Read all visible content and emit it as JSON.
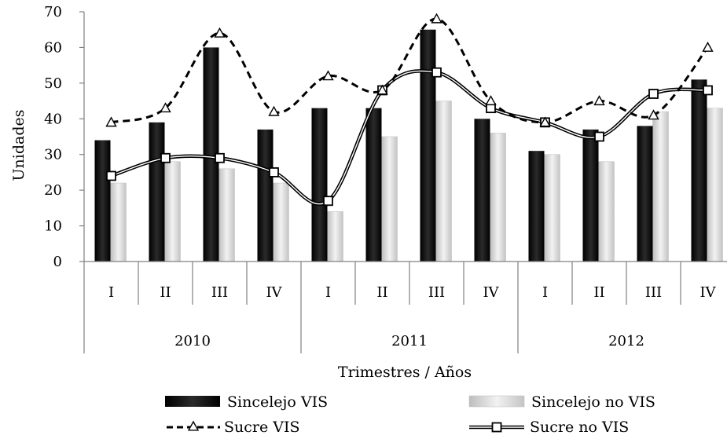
{
  "chart_data": {
    "type": "bar",
    "xlabel": "Trimestres / Años",
    "ylabel": "Unidades",
    "ylim": [
      0,
      70
    ],
    "yticks": [
      0,
      10,
      20,
      30,
      40,
      50,
      60,
      70
    ],
    "grid": false,
    "legend_position": "bottom",
    "quarters": [
      "I",
      "II",
      "III",
      "IV",
      "I",
      "II",
      "III",
      "IV",
      "I",
      "II",
      "III",
      "IV"
    ],
    "years": [
      "2010",
      "2011",
      "2012"
    ],
    "series": [
      {
        "name": "Sincelejo VIS",
        "kind": "bar",
        "color": "#000000",
        "values": [
          34,
          39,
          60,
          37,
          43,
          43,
          65,
          40,
          31,
          37,
          38,
          51
        ]
      },
      {
        "name": "Sincelejo no VIS",
        "kind": "bar",
        "color": "#d9d9d9",
        "values": [
          22,
          28,
          26,
          22,
          14,
          35,
          45,
          36,
          30,
          28,
          42,
          43
        ]
      },
      {
        "name": "Sucre VIS",
        "kind": "line",
        "style": "dashed",
        "marker": "triangle",
        "values": [
          39,
          43,
          64,
          42,
          52,
          48,
          68,
          45,
          39,
          45,
          41,
          60
        ]
      },
      {
        "name": "Sucre no VIS",
        "kind": "line",
        "style": "solid",
        "marker": "square",
        "values": [
          24,
          29,
          29,
          25,
          17,
          48,
          53,
          43,
          39,
          35,
          47,
          48
        ]
      }
    ]
  }
}
